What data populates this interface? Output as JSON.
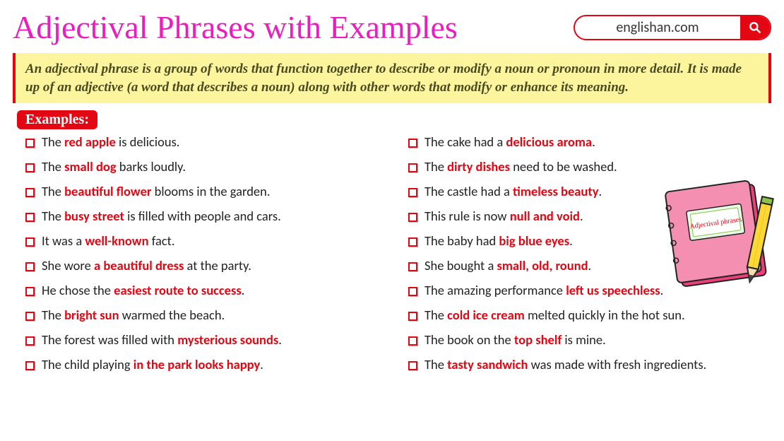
{
  "title": "Adjectival Phrases with Examples",
  "site_label": "englishan.com",
  "definition": "An adjectival phrase is a group of words that function together to describe or modify a noun or pronoun in more detail. It is made up of an adjective (a word that describes a noun) along with other words that modify or enhance its meaning.",
  "examples_label": "Examples:",
  "book_label": "Adjectival phrases",
  "colors": {
    "title": "#e91ebc",
    "accent": "#e30613",
    "definition_bg": "#fcf59e",
    "definition_text": "#4a4a1f",
    "body_text": "#222222",
    "background": "#ffffff",
    "book_pink": "#f48fb1",
    "book_pink_dark": "#ec407a",
    "pencil_body": "#fdd835",
    "pencil_tip": "#f9a825",
    "pencil_lead": "#424242"
  },
  "typography": {
    "title_fontsize": 46,
    "definition_fontsize": 19,
    "item_fontsize": 18.5,
    "badge_fontsize": 20
  },
  "left": [
    {
      "pre": "The ",
      "hl": "red apple",
      "post": " is delicious."
    },
    {
      "pre": "The ",
      "hl": "small dog",
      "post": " barks loudly."
    },
    {
      "pre": "The ",
      "hl": "beautiful flower",
      "post": " blooms in the garden."
    },
    {
      "pre": "The ",
      "hl": "busy street",
      "post": " is filled with people and cars."
    },
    {
      "pre": "It was a ",
      "hl": "well-known",
      "post": " fact."
    },
    {
      "pre": "She wore ",
      "hl": "a beautiful dress",
      "post": " at the party."
    },
    {
      "pre": "He chose the ",
      "hl": "easiest route to success",
      "post": "."
    },
    {
      "pre": "The ",
      "hl": "bright sun",
      "post": " warmed the beach."
    },
    {
      "pre": "The forest was filled with ",
      "hl": "mysterious sounds",
      "post": "."
    },
    {
      "pre": "The child playing ",
      "hl": "in the park looks happy",
      "post": "."
    }
  ],
  "right": [
    {
      "pre": "The cake had a ",
      "hl": "delicious aroma",
      "post": "."
    },
    {
      "pre": "The ",
      "hl": "dirty dishes",
      "post": " need to be washed."
    },
    {
      "pre": "The castle had a ",
      "hl": "timeless beauty",
      "post": "."
    },
    {
      "pre": "This rule is now ",
      "hl": "null and void",
      "post": "."
    },
    {
      "pre": "The baby had ",
      "hl": "big blue eyes",
      "post": "."
    },
    {
      "pre": "She bought a ",
      "hl": "small, old, round",
      "post": "."
    },
    {
      "pre": "The amazing performance ",
      "hl": "left us speechless",
      "post": "."
    },
    {
      "pre": "The ",
      "hl": "cold ice cream",
      "post": " melted quickly in the hot sun."
    },
    {
      "pre": "The book on the ",
      "hl": "top shelf",
      "post": " is mine."
    },
    {
      "pre": "The ",
      "hl": "tasty sandwich",
      "post": " was made with fresh ingredients."
    }
  ]
}
